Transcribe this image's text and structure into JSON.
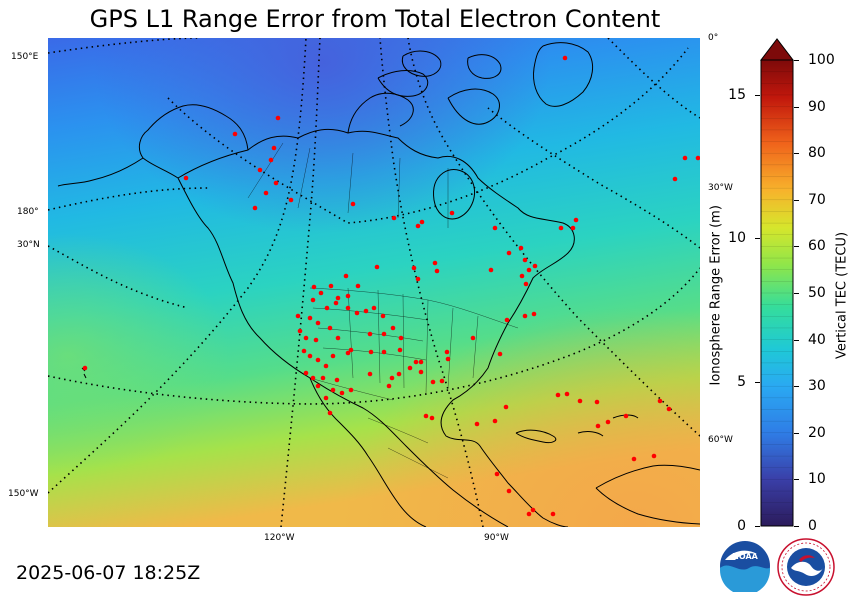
{
  "header": {
    "title": "GPS L1 Range Error from Total Electron Content",
    "timestamp": "2025-06-07 18:25Z"
  },
  "map": {
    "graticule_labels": {
      "lon_150E": "150°E",
      "lon_180": "180°",
      "lat_30N": "30°N",
      "lon_150W": "150°W",
      "lon_0": "0°",
      "lon_30W": "30°W",
      "lon_60W": "60°W",
      "lon_120W": "120°W",
      "lon_90W": "90°W"
    },
    "field_colors": {
      "north_low": "#3e67e6",
      "high_lat": "#2f9bf0",
      "mid": "#1fc9d6",
      "green": "#6fe06a",
      "south_high": "#f3bb4a"
    },
    "station_color": "#ff0000"
  },
  "colorbar": {
    "label_right": "Vertical TEC (TECU)",
    "label_left": "Ionosphere Range Error (m)",
    "ticks_right": [
      "0",
      "10",
      "20",
      "30",
      "40",
      "50",
      "60",
      "70",
      "80",
      "90",
      "100"
    ],
    "ticks_left": [
      "0",
      "5",
      "10",
      "15"
    ],
    "range_tecu": [
      0,
      100
    ],
    "range_m": [
      0,
      16.2
    ],
    "extend_max": true,
    "colors": [
      "#2b1b5b",
      "#3a3fa8",
      "#2f7de6",
      "#2aa9f2",
      "#1fc9d6",
      "#35dd9b",
      "#8fe64a",
      "#d6e62c",
      "#f7b32c",
      "#f0641b",
      "#c1170c",
      "#7d0a0a"
    ]
  },
  "logos": {
    "noaa": "NOAA",
    "nws": "NATIONAL WEATHER SERVICE"
  }
}
